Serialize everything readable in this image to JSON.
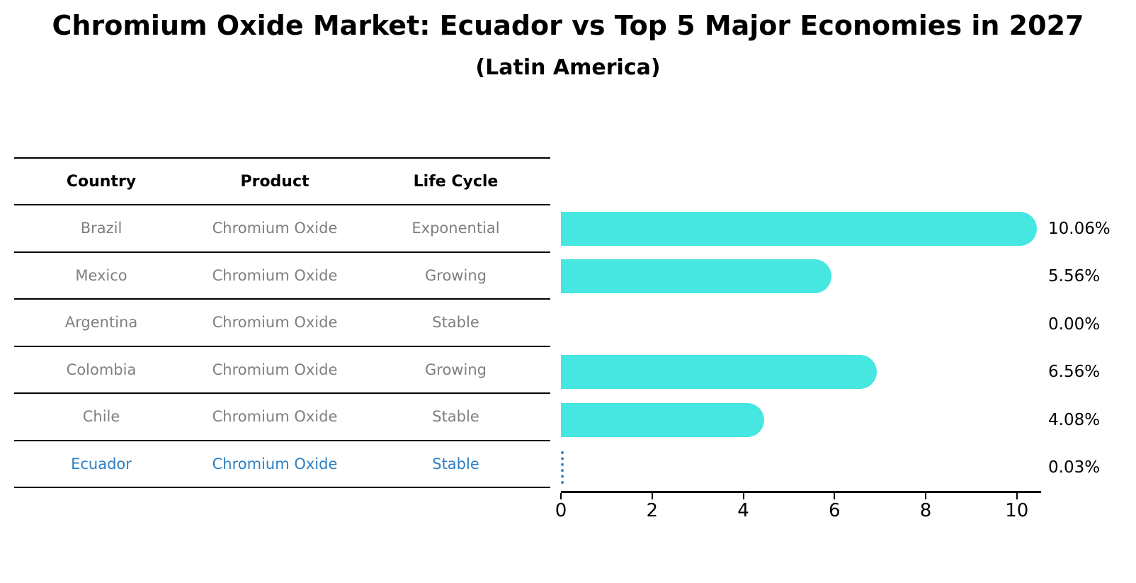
{
  "title": "Chromium Oxide Market: Ecuador vs Top 5 Major Economies in 2027",
  "subtitle": "(Latin America)",
  "table": {
    "headers": [
      "Country",
      "Product",
      "Life Cycle"
    ],
    "rows": [
      {
        "country": "Brazil",
        "product": "Chromium Oxide",
        "life_cycle": "Exponential",
        "highlight": false
      },
      {
        "country": "Mexico",
        "product": "Chromium Oxide",
        "life_cycle": "Growing",
        "highlight": false
      },
      {
        "country": "Argentina",
        "product": "Chromium Oxide",
        "life_cycle": "Stable",
        "highlight": false
      },
      {
        "country": "Colombia",
        "product": "Chromium Oxide",
        "life_cycle": "Growing",
        "highlight": false
      },
      {
        "country": "Chile",
        "product": "Chromium Oxide",
        "life_cycle": "Stable",
        "highlight": false
      },
      {
        "country": "Ecuador",
        "product": "Chromium Oxide",
        "life_cycle": "Stable",
        "highlight": true
      }
    ]
  },
  "chart_data": {
    "type": "bar",
    "orientation": "horizontal",
    "title": "Chromium Oxide Market: Ecuador vs Top 5 Major Economies in 2027",
    "subtitle": "(Latin America)",
    "categories": [
      "Brazil",
      "Mexico",
      "Argentina",
      "Colombia",
      "Chile",
      "Ecuador"
    ],
    "values": [
      10.06,
      5.56,
      0.0,
      6.56,
      4.08,
      0.03
    ],
    "value_labels": [
      "10.06%",
      "5.56%",
      "0.00%",
      "6.56%",
      "4.08%",
      "0.03%"
    ],
    "highlight_index": 5,
    "xlim": [
      0,
      10.5
    ],
    "x_ticks": [
      0,
      2,
      4,
      6,
      8,
      10
    ],
    "grid": false,
    "legend": "none"
  },
  "colors": {
    "bar": "#46E6E1",
    "highlight_blue": "#2E80C4",
    "highlight_dot_border": "#3A86C8",
    "body_gray": "#7f7f7f",
    "axis_black": "#000000"
  }
}
